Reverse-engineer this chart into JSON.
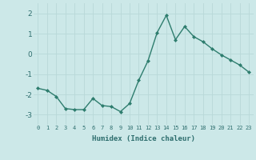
{
  "x": [
    0,
    1,
    2,
    3,
    4,
    5,
    6,
    7,
    8,
    9,
    10,
    11,
    12,
    13,
    14,
    15,
    16,
    17,
    18,
    19,
    20,
    21,
    22,
    23
  ],
  "y": [
    -1.7,
    -1.8,
    -2.1,
    -2.7,
    -2.75,
    -2.75,
    -2.2,
    -2.55,
    -2.6,
    -2.85,
    -2.45,
    -1.3,
    -0.35,
    1.05,
    1.9,
    0.7,
    1.35,
    0.85,
    0.6,
    0.25,
    -0.05,
    -0.3,
    -0.55,
    -0.9
  ],
  "line_color": "#2e7d6e",
  "marker": "D",
  "marker_size": 2.0,
  "bg_color": "#cce8e8",
  "grid_color": "#b8d8d8",
  "xlabel": "Humidex (Indice chaleur)",
  "xlim": [
    -0.5,
    23.5
  ],
  "ylim": [
    -3.5,
    2.5
  ],
  "yticks": [
    -3,
    -2,
    -1,
    0,
    1,
    2
  ],
  "xticks": [
    0,
    1,
    2,
    3,
    4,
    5,
    6,
    7,
    8,
    9,
    10,
    11,
    12,
    13,
    14,
    15,
    16,
    17,
    18,
    19,
    20,
    21,
    22,
    23
  ],
  "tick_color": "#2e6e6e",
  "xlabel_fontsize": 6.5,
  "xtick_fontsize": 5.0,
  "ytick_fontsize": 6.5,
  "linewidth": 1.0
}
